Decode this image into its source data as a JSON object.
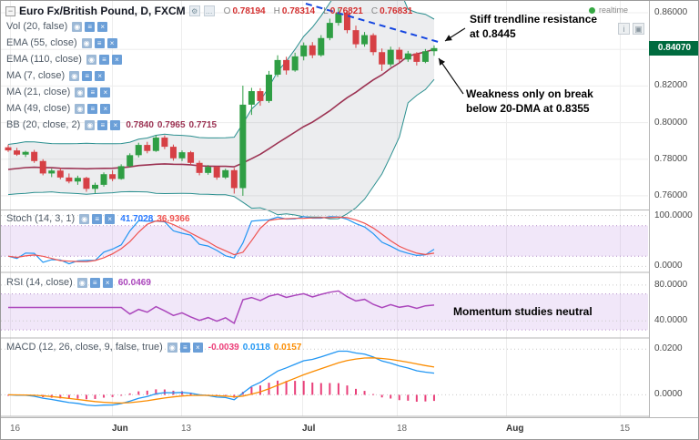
{
  "header": {
    "collapse_glyph": "−",
    "symbol": "Euro Fx/British Pound, D, FXCM",
    "ohlc": {
      "o_label": "O",
      "o": "0.78194",
      "h_label": "H",
      "h": "0.78314",
      "l_label": "L",
      "l": "0.76821",
      "c_label": "C",
      "c": "0.76831"
    },
    "realtime": "realtime"
  },
  "legend": {
    "icons": [
      {
        "name": "eye-icon",
        "glyph": "◉"
      },
      {
        "name": "settings-icon",
        "glyph": "≡"
      },
      {
        "name": "close-icon",
        "glyph": "×"
      }
    ],
    "main_rows": [
      {
        "label": "Vol (20, false)",
        "values": []
      },
      {
        "label": "EMA (55, close)",
        "values": []
      },
      {
        "label": "EMA (110, close)",
        "values": []
      },
      {
        "label": "MA (7, close)",
        "values": []
      },
      {
        "label": "MA (21, close)",
        "values": []
      },
      {
        "label": "MA (49, close)",
        "values": []
      },
      {
        "label": "BB (20, close, 2)",
        "values": [
          {
            "text": "0.7840",
            "color": "#9c3353"
          },
          {
            "text": "0.7965",
            "color": "#9c3353"
          },
          {
            "text": "0.7715",
            "color": "#9c3353"
          }
        ]
      }
    ],
    "stoch_row": {
      "label": "Stoch (14, 3, 1)",
      "values": [
        {
          "text": "41.7028",
          "color": "#2979ff"
        },
        {
          "text": "36.9366",
          "color": "#ef5350"
        }
      ]
    },
    "rsi_row": {
      "label": "RSI (14, close)",
      "values": [
        {
          "text": "60.0469",
          "color": "#ab47bc"
        }
      ]
    },
    "macd_row": {
      "label": "MACD (12, 26, close, 9, false, true)",
      "values": [
        {
          "text": "-0.0039",
          "color": "#ec407a"
        },
        {
          "text": "0.0118",
          "color": "#2196f3"
        },
        {
          "text": "0.0157",
          "color": "#fb8c00"
        }
      ]
    }
  },
  "annotations": {
    "resistance": {
      "line1": "Stiff trendline resistance",
      "line2": "at 0.8445"
    },
    "weakness": {
      "line1": "Weakness only on break",
      "line2": "below 20-DMA at 0.8355"
    },
    "momentum": {
      "text": "Momentum studies neutral"
    }
  },
  "colors": {
    "up": "#2f9e44",
    "down": "#d64045",
    "bb_line": "#2a8f8f",
    "bb_fill": "rgba(120,130,140,0.14)",
    "dma": "#9c3353",
    "trendline": "#1546e0",
    "stoch_k": "#2196f3",
    "stoch_d": "#ef5350",
    "band_fill": "rgba(186,137,224,0.20)",
    "band_edge": "#b48ec9",
    "rsi": "#ab47bc",
    "macd": "#2196f3",
    "macd_signal": "#fb8c00",
    "macd_hist": "#e9407a",
    "badge_bg": "#006b3f",
    "realtime_dot": "#35a843",
    "grid": "#ededed",
    "separator": "#b5b5b5",
    "arrow": "#111111"
  },
  "chart_data": {
    "type": "candlestick",
    "title": "Euro Fx/British Pound, D, FXCM",
    "last_price": "0.84070",
    "price_axis_ticks": [
      "0.86000",
      "0.84000",
      "0.82000",
      "0.80000",
      "0.78000",
      "0.76000"
    ],
    "time_axis_ticks": [
      "16",
      "Jun",
      "13",
      "Jul",
      "18",
      "Aug",
      "15"
    ],
    "candles": [
      [
        0.7865,
        0.788,
        0.784,
        0.7848
      ],
      [
        0.7848,
        0.7862,
        0.7818,
        0.7825
      ],
      [
        0.7825,
        0.7846,
        0.7812,
        0.784
      ],
      [
        0.784,
        0.7851,
        0.778,
        0.779
      ],
      [
        0.779,
        0.78,
        0.7712,
        0.7722
      ],
      [
        0.7722,
        0.7748,
        0.7702,
        0.7738
      ],
      [
        0.7738,
        0.7752,
        0.769,
        0.77
      ],
      [
        0.77,
        0.7722,
        0.7668,
        0.7678
      ],
      [
        0.7678,
        0.771,
        0.766,
        0.7698
      ],
      [
        0.7698,
        0.7704,
        0.7622,
        0.7638
      ],
      [
        0.7638,
        0.7672,
        0.7615,
        0.766
      ],
      [
        0.766,
        0.7728,
        0.765,
        0.7718
      ],
      [
        0.7718,
        0.774,
        0.768,
        0.7692
      ],
      [
        0.7692,
        0.7772,
        0.7688,
        0.7762
      ],
      [
        0.7762,
        0.7832,
        0.7755,
        0.7822
      ],
      [
        0.7822,
        0.789,
        0.781,
        0.7878
      ],
      [
        0.7878,
        0.7895,
        0.7832,
        0.7845
      ],
      [
        0.7845,
        0.7932,
        0.784,
        0.7918
      ],
      [
        0.7918,
        0.793,
        0.7855,
        0.7868
      ],
      [
        0.7868,
        0.788,
        0.7792,
        0.7805
      ],
      [
        0.7805,
        0.7848,
        0.779,
        0.7838
      ],
      [
        0.7838,
        0.7845,
        0.7768,
        0.778
      ],
      [
        0.778,
        0.7792,
        0.7712,
        0.7725
      ],
      [
        0.7725,
        0.7768,
        0.7715,
        0.7758
      ],
      [
        0.7758,
        0.7762,
        0.7688,
        0.77
      ],
      [
        0.77,
        0.7748,
        0.7692,
        0.774
      ],
      [
        0.774,
        0.7752,
        0.7612,
        0.7642
      ],
      [
        0.7642,
        0.8202,
        0.76,
        0.8098
      ],
      [
        0.8098,
        0.819,
        0.8042,
        0.8172
      ],
      [
        0.8172,
        0.8188,
        0.8092,
        0.8118
      ],
      [
        0.8118,
        0.8282,
        0.8108,
        0.8262
      ],
      [
        0.8262,
        0.8368,
        0.825,
        0.8342
      ],
      [
        0.8342,
        0.836,
        0.8262,
        0.8285
      ],
      [
        0.8285,
        0.8382,
        0.8278,
        0.8362
      ],
      [
        0.8362,
        0.8438,
        0.834,
        0.8422
      ],
      [
        0.8422,
        0.844,
        0.8352,
        0.8368
      ],
      [
        0.8368,
        0.8478,
        0.836,
        0.8462
      ],
      [
        0.8462,
        0.8568,
        0.845,
        0.8545
      ],
      [
        0.8545,
        0.8628,
        0.853,
        0.8598
      ],
      [
        0.8598,
        0.8612,
        0.8488,
        0.8505
      ],
      [
        0.8505,
        0.853,
        0.8408,
        0.8428
      ],
      [
        0.8428,
        0.8495,
        0.8415,
        0.8478
      ],
      [
        0.8478,
        0.8488,
        0.8368,
        0.8385
      ],
      [
        0.8385,
        0.8405,
        0.8282,
        0.8318
      ],
      [
        0.8318,
        0.8415,
        0.8305,
        0.8398
      ],
      [
        0.8398,
        0.8412,
        0.8328,
        0.8345
      ],
      [
        0.8345,
        0.8392,
        0.8332,
        0.8378
      ],
      [
        0.8378,
        0.8385,
        0.8312,
        0.8332
      ],
      [
        0.8332,
        0.8402,
        0.8325,
        0.839
      ],
      [
        0.839,
        0.8422,
        0.8365,
        0.8407
      ]
    ],
    "overlays": {
      "bollinger": {
        "period": 20,
        "stdev": 2
      },
      "dma": {
        "period": 20
      }
    },
    "trendline": {
      "style": "dashed-blue",
      "from_price": 0.866,
      "to_price": 0.845
    },
    "panels": {
      "stoch": {
        "label": "Stoch (14, 3, 1)",
        "k": 14,
        "smooth": 3,
        "ticks": [
          "100.0000",
          "0.0000"
        ],
        "band": [
          20,
          80
        ]
      },
      "rsi": {
        "label": "RSI (14, close)",
        "period": 14,
        "ticks": [
          "80.0000",
          "40.0000"
        ],
        "band": [
          30,
          70
        ]
      },
      "macd": {
        "label": "MACD (12, 26, close, 9, false, true)",
        "fast": 12,
        "slow": 26,
        "signal": 9,
        "ticks": [
          "0.0200",
          "0.0000"
        ]
      }
    }
  }
}
